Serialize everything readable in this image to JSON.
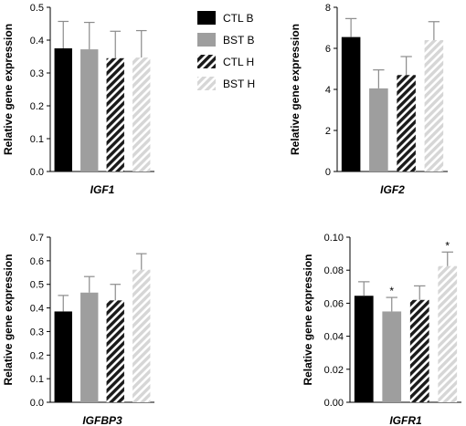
{
  "legend": {
    "entries": [
      {
        "label": "CTL B",
        "style": "solid-black"
      },
      {
        "label": "BST B",
        "style": "solid-gray"
      },
      {
        "label": "CTL H",
        "style": "hatch-dark"
      },
      {
        "label": "BST H",
        "style": "hatch-light"
      }
    ]
  },
  "colors": {
    "ctl_b": "#000000",
    "bst_b": "#9e9e9e",
    "hatch_dark": "#1a1a1a",
    "hatch_light": "#d6d6d6",
    "error_bar": "#8c8c8c"
  },
  "chart_data": [
    {
      "type": "bar",
      "xlabel": "IGF1",
      "ylabel": "Relative gene expression",
      "ylim": [
        0,
        0.5
      ],
      "yticks": [
        "0.0",
        "0.1",
        "0.2",
        "0.3",
        "0.4",
        "0.5"
      ],
      "categories": [
        "CTL B",
        "BST B",
        "CTL H",
        "BST H"
      ],
      "values": [
        0.375,
        0.372,
        0.345,
        0.347
      ],
      "errors": [
        0.082,
        0.082,
        0.082,
        0.082
      ],
      "significance": [
        "",
        "",
        "",
        ""
      ]
    },
    {
      "type": "bar",
      "xlabel": "IGF2",
      "ylabel": "Relative gene expression",
      "ylim": [
        0,
        8
      ],
      "yticks": [
        "0",
        "2",
        "4",
        "6",
        "8"
      ],
      "categories": [
        "CTL B",
        "BST B",
        "CTL H",
        "BST H"
      ],
      "values": [
        6.55,
        4.05,
        4.7,
        6.4
      ],
      "errors": [
        0.9,
        0.9,
        0.9,
        0.9
      ],
      "significance": [
        "",
        "",
        "",
        ""
      ]
    },
    {
      "type": "bar",
      "xlabel": "IGFBP3",
      "ylabel": "Relative gene expression",
      "ylim": [
        0,
        0.7
      ],
      "yticks": [
        "0.0",
        "0.1",
        "0.2",
        "0.3",
        "0.4",
        "0.5",
        "0.6",
        "0.7"
      ],
      "categories": [
        "CTL B",
        "BST B",
        "CTL H",
        "BST H"
      ],
      "values": [
        0.385,
        0.465,
        0.432,
        0.562
      ],
      "errors": [
        0.068,
        0.068,
        0.068,
        0.068
      ],
      "significance": [
        "",
        "",
        "",
        ""
      ]
    },
    {
      "type": "bar",
      "xlabel": "IGFR1",
      "ylabel": "Relative gene expression",
      "ylim": [
        0,
        0.1
      ],
      "yticks": [
        "0.00",
        "0.02",
        "0.04",
        "0.06",
        "0.08",
        "0.10"
      ],
      "categories": [
        "CTL B",
        "BST B",
        "CTL H",
        "BST H"
      ],
      "values": [
        0.0645,
        0.055,
        0.062,
        0.0825
      ],
      "errors": [
        0.0085,
        0.0085,
        0.0085,
        0.0085
      ],
      "significance": [
        "",
        "*",
        "",
        "*"
      ]
    }
  ]
}
